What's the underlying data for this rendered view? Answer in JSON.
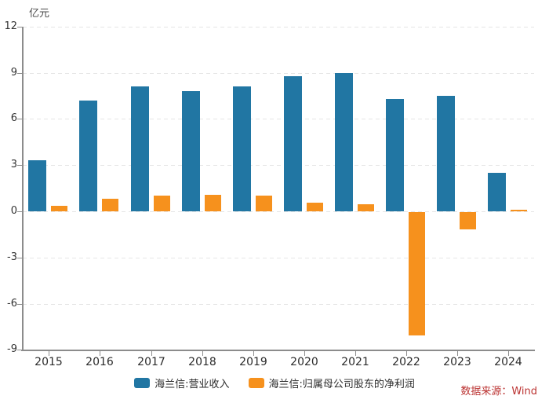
{
  "unit_label": "亿元",
  "source_label": "数据来源：Wind",
  "colors": {
    "revenue_blue": "#2176a3",
    "profit_orange": "#f6911d",
    "axis_gray": "#8c8c8c",
    "grid_gray": "#e5e5e5",
    "source_red": "#bb3231"
  },
  "legend": {
    "items": [
      {
        "label": "海兰信:营业收入",
        "color": "#2176a3"
      },
      {
        "label": "海兰信:归属母公司股东的净利润",
        "color": "#f6911d"
      }
    ]
  },
  "chart_data": {
    "type": "bar",
    "categories": [
      "2015",
      "2016",
      "2017",
      "2018",
      "2019",
      "2020",
      "2021",
      "2022",
      "2023",
      "2024"
    ],
    "series": [
      {
        "name": "海兰信:营业收入",
        "color": "#2176a3",
        "values": [
          3.3,
          7.2,
          8.1,
          7.8,
          8.1,
          8.8,
          9.0,
          7.3,
          7.5,
          2.5
        ]
      },
      {
        "name": "海兰信:归属母公司股东的净利润",
        "color": "#f6911d",
        "values": [
          0.35,
          0.8,
          1.0,
          1.05,
          1.0,
          0.55,
          0.45,
          -8.0,
          -1.1,
          0.1
        ]
      }
    ],
    "title": "",
    "xlabel": "",
    "ylabel": "亿元",
    "ylim": [
      -9,
      12
    ],
    "yticks": [
      12,
      9,
      6,
      3,
      0,
      -3,
      -6,
      -9
    ],
    "grid": true,
    "legend_position": "bottom"
  }
}
